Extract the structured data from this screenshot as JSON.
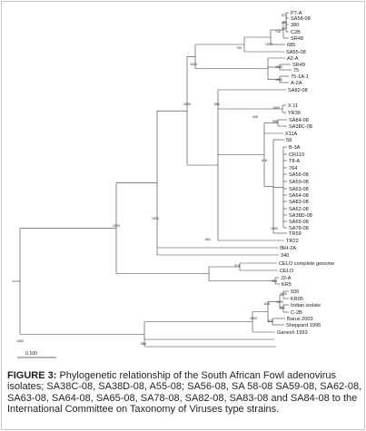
{
  "tree": {
    "scale_label": "0.100",
    "leaves": [
      "P7-A",
      "SA58-08",
      "380",
      "C2B",
      "SR48",
      "685",
      "SA55-08",
      "SR49",
      "75",
      "75-1A-1",
      "A-2A",
      "A2-A",
      "X 11",
      "YR36",
      "B-3A",
      "CR119",
      "T8-A",
      "764",
      "SA56-08",
      "SA59-08",
      "SA63-08",
      "SA64-08",
      "SA83-08",
      "SA62-08",
      "SA38D-08",
      "SA65-08",
      "SA78-08",
      "SA82-08",
      "SA84-08",
      "SA38C-08",
      "X11A",
      "58",
      "TR59",
      "TR22",
      "IBH-2A",
      "340",
      "CELO complete genome",
      "CELO",
      "J2-A",
      "KR5",
      "506",
      "KR95",
      "Indian isolate",
      "C-2B",
      "Barus 2003",
      "Sheppard 1995",
      "Ganesh 1993"
    ],
    "bootstrap": [
      "871",
      "997",
      "654",
      "718",
      "1000",
      "709",
      "1000",
      "1000",
      "1000",
      "1000",
      "1000",
      "998",
      "618",
      "446",
      "582",
      "1000",
      "1000",
      "374",
      "908",
      "661",
      "1000",
      "1000",
      "841",
      "1000",
      "674",
      "815",
      "1000",
      "958",
      "1000",
      "998",
      "840"
    ]
  },
  "caption": {
    "label": "FIGURE 3:",
    "text": " Phylogenetic relationship of the South African Fowl adenovirus isolates; SA38C-08, SA38D-08, A55-08; SA56-08, SA 58-08 SA59-08, SA62-08, SA63-08, SA64-08, SA65-08, SA78-08, SA82-08, SA83-08 and SA84-08 to the International Committee on Taxonomy of Viruses type strains."
  }
}
